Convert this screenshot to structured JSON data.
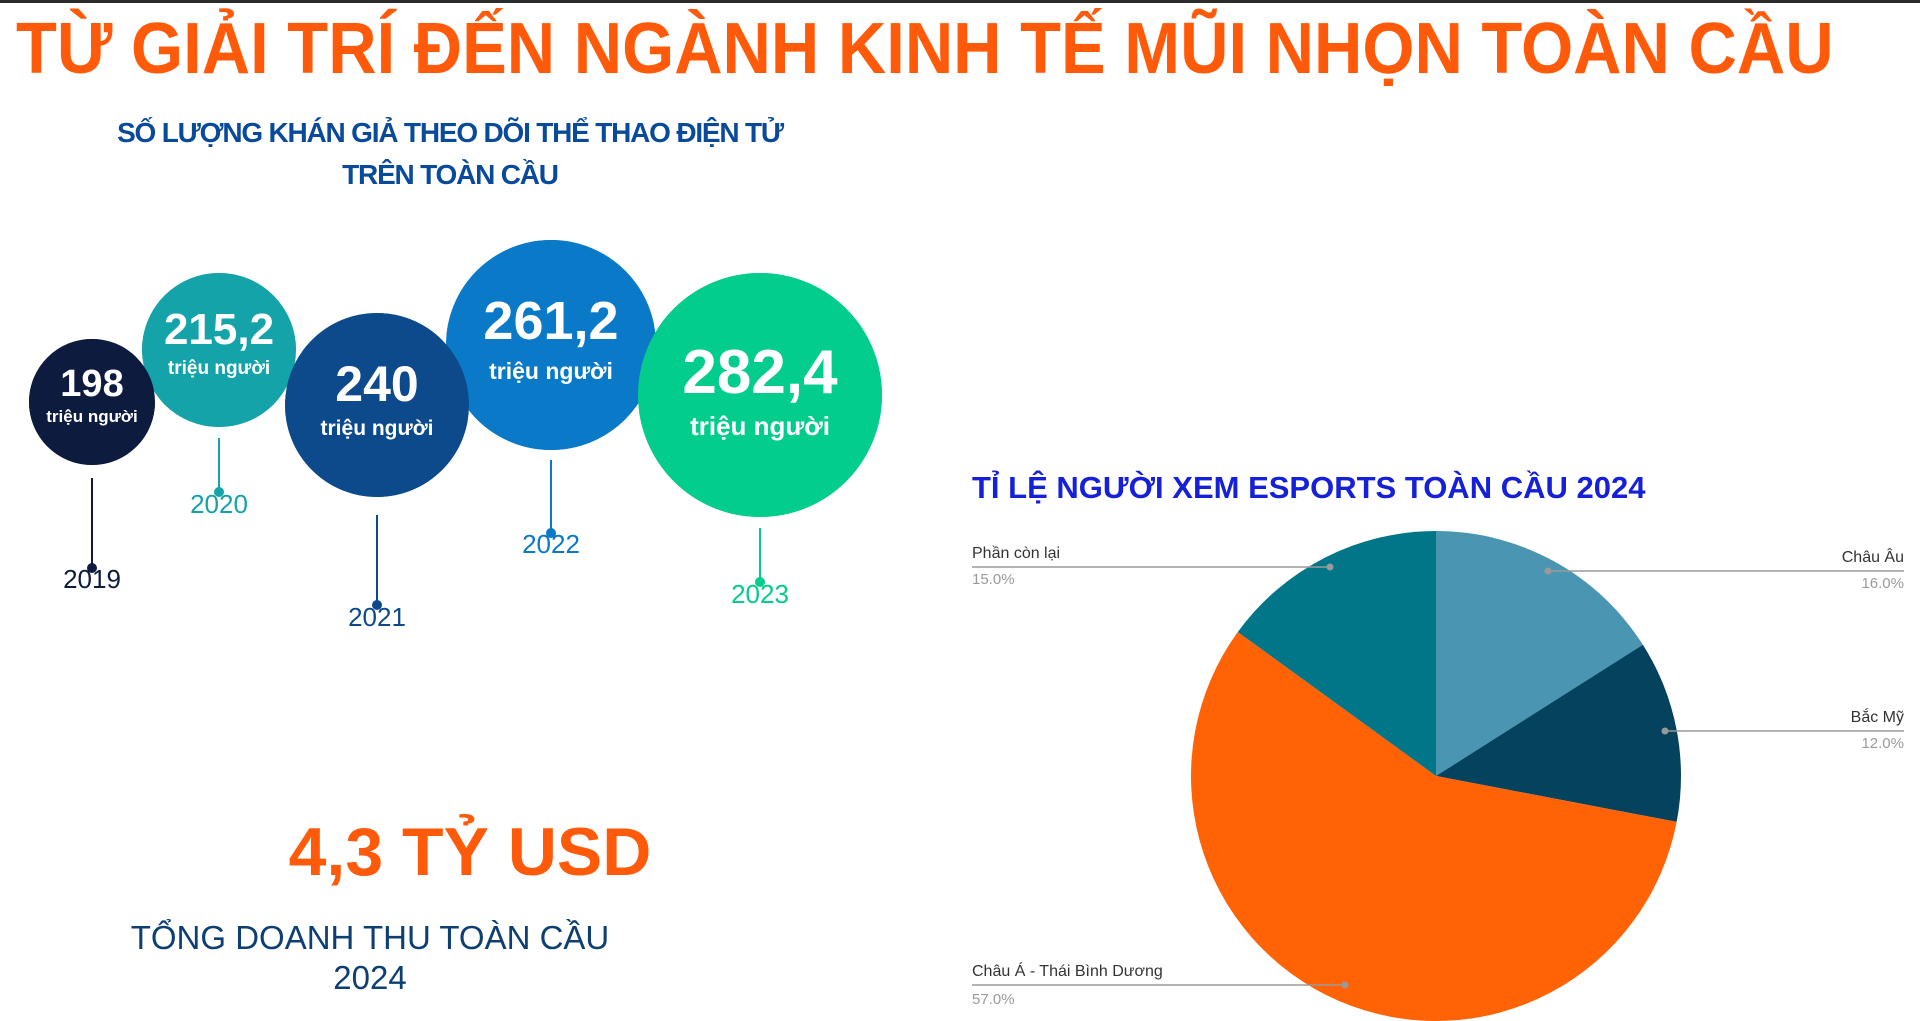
{
  "title": "TỪ GIẢI TRÍ ĐẾN NGÀNH KINH TẾ MŨI NHỌN TOÀN CẦU",
  "audience": {
    "title_line1": "SỐ LƯỢNG KHÁN GIẢ THEO DÕI THỂ THAO ĐIỆN TỬ",
    "title_line2": "TRÊN TOÀN CẦU"
  },
  "revenue": {
    "value": "4,3 TỶ USD",
    "caption": "TỔNG DOANH THU TOÀN CẦU 2024"
  },
  "chart_data": [
    {
      "type": "bubble",
      "title": "SỐ LƯỢNG KHÁN GIẢ THEO DÕI THỂ THAO ĐIỆN TỬ TRÊN TOÀN CẦU",
      "unit": "triệu người",
      "categories": [
        "2019",
        "2020",
        "2021",
        "2022",
        "2023"
      ],
      "values": [
        198,
        215.2,
        240,
        261.2,
        282.4
      ],
      "value_labels": [
        "198",
        "215,2",
        "240",
        "261,2",
        "282,4"
      ],
      "colors": [
        "#0d1b3e",
        "#13a3a8",
        "#0c4a8c",
        "#0a79c7",
        "#03cd8d"
      ]
    },
    {
      "type": "pie",
      "title": "TỈ LỆ NGƯỜI XEM ESPORTS TOÀN CẦU 2024",
      "slices": [
        {
          "label": "Châu Âu",
          "value": 16.0,
          "value_label": "16.0%",
          "color": "#4a96b2"
        },
        {
          "label": "Bắc Mỹ",
          "value": 12.0,
          "value_label": "12.0%",
          "color": "#04425d"
        },
        {
          "label": "Châu Á - Thái Bình Dương",
          "value": 57.0,
          "value_label": "57.0%",
          "color": "#ff6305"
        },
        {
          "label": "Phần còn lại",
          "value": 15.0,
          "value_label": "15.0%",
          "color": "#007688"
        }
      ]
    }
  ]
}
